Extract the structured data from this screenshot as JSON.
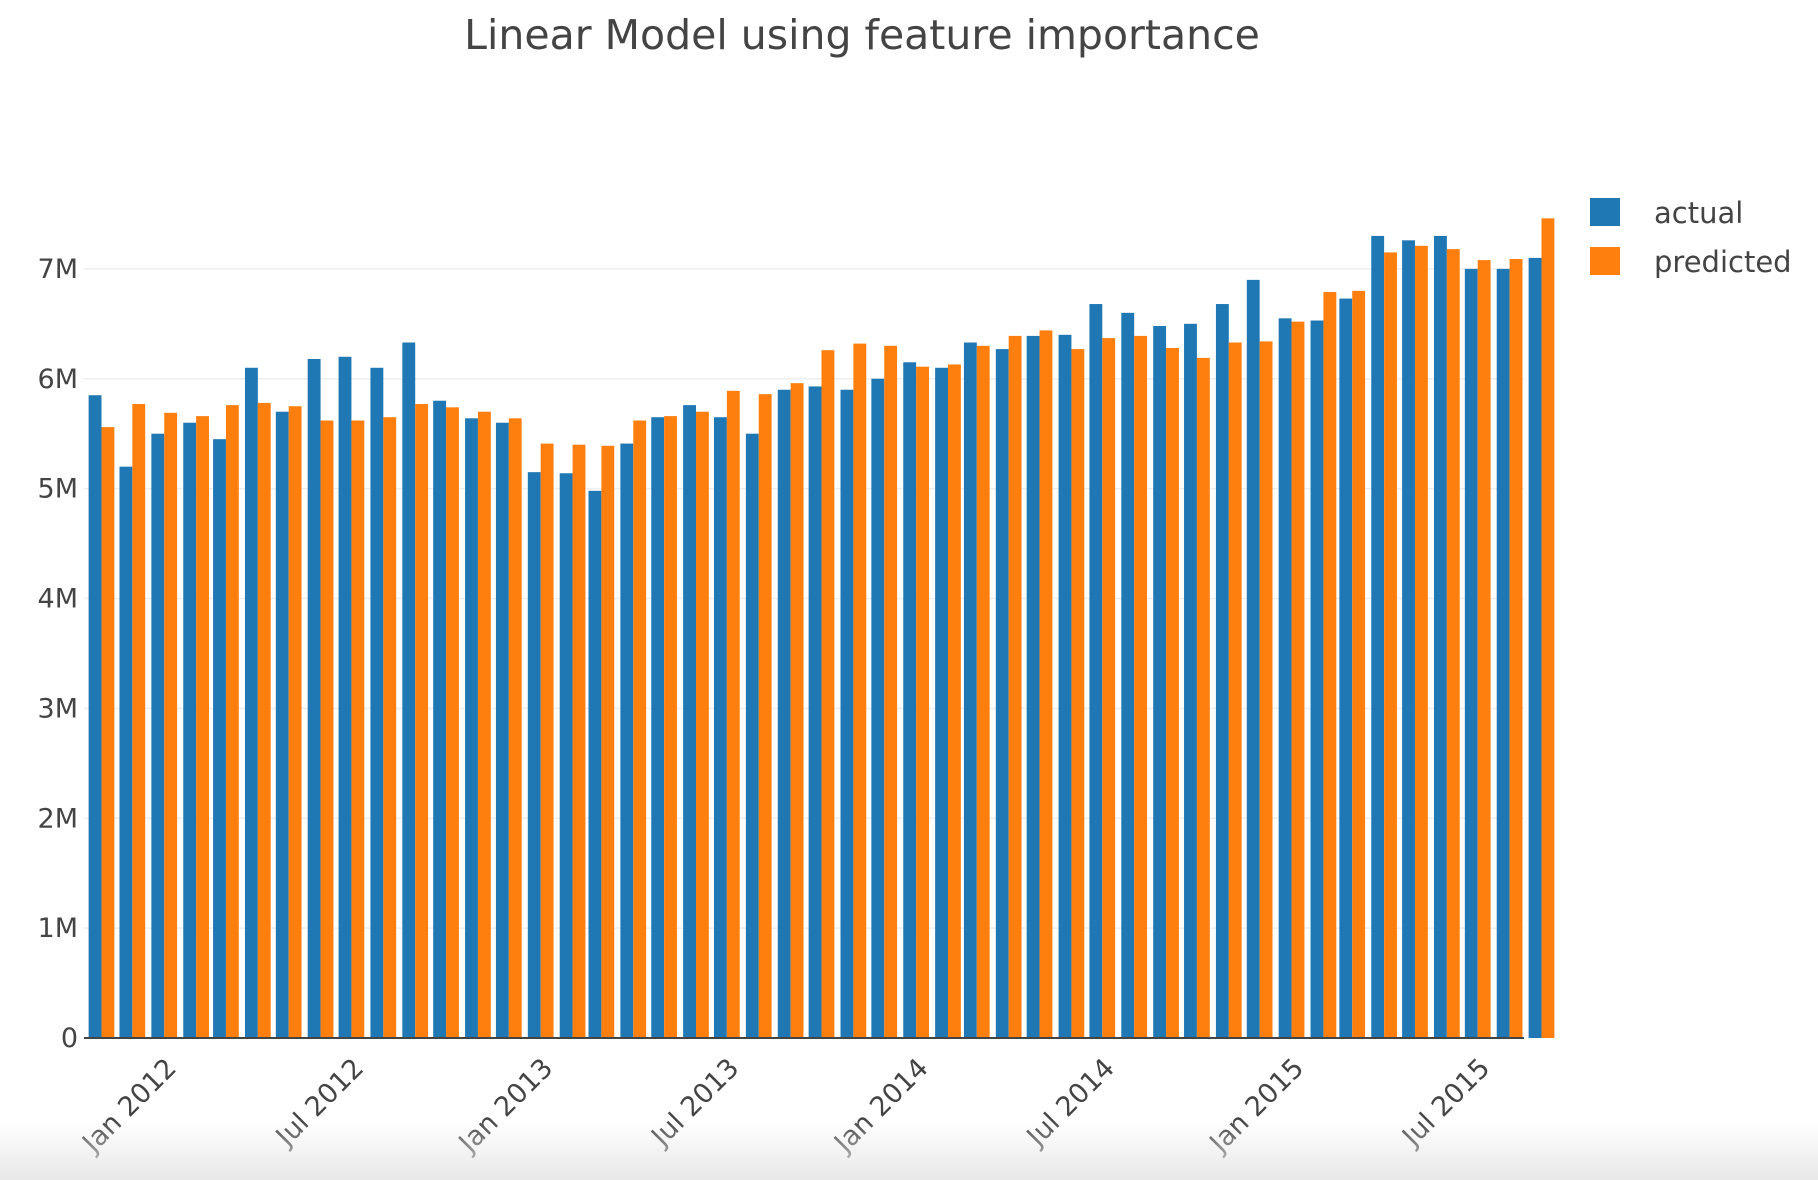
{
  "chart_data": {
    "type": "bar",
    "title": "Linear Model using feature importance",
    "xlabel": "",
    "ylabel": "",
    "ylim": [
      0,
      7900000
    ],
    "xlim": [
      "2011-10-15",
      "2015-08-15"
    ],
    "x_axis_type": "date",
    "y_ticks": [
      {
        "value": 0,
        "label": "0"
      },
      {
        "value": 1000000,
        "label": "1M"
      },
      {
        "value": 2000000,
        "label": "2M"
      },
      {
        "value": 3000000,
        "label": "3M"
      },
      {
        "value": 4000000,
        "label": "4M"
      },
      {
        "value": 5000000,
        "label": "5M"
      },
      {
        "value": 6000000,
        "label": "6M"
      },
      {
        "value": 7000000,
        "label": "7M"
      }
    ],
    "x_ticks": [
      {
        "value": "2012-01-01",
        "label": "Jan 2012"
      },
      {
        "value": "2012-07-01",
        "label": "Jul 2012"
      },
      {
        "value": "2013-01-01",
        "label": "Jan 2013"
      },
      {
        "value": "2013-07-01",
        "label": "Jul 2013"
      },
      {
        "value": "2014-01-01",
        "label": "Jan 2014"
      },
      {
        "value": "2014-07-01",
        "label": "Jul 2014"
      },
      {
        "value": "2015-01-01",
        "label": "Jan 2015"
      },
      {
        "value": "2015-07-01",
        "label": "Jul 2015"
      }
    ],
    "grid": true,
    "legend_position": "top-right",
    "x": [
      "2011-11-01",
      "2011-12-01",
      "2012-01-01",
      "2012-02-01",
      "2012-03-01",
      "2012-04-01",
      "2012-05-01",
      "2012-06-01",
      "2012-07-01",
      "2012-08-01",
      "2012-09-01",
      "2012-10-01",
      "2012-11-01",
      "2012-12-01",
      "2013-01-01",
      "2013-02-01",
      "2013-03-01",
      "2013-04-01",
      "2013-05-01",
      "2013-06-01",
      "2013-07-01",
      "2013-08-01",
      "2013-09-01",
      "2013-10-01",
      "2013-11-01",
      "2013-12-01",
      "2014-01-01",
      "2014-02-01",
      "2014-03-01",
      "2014-04-01",
      "2014-05-01",
      "2014-06-01",
      "2014-07-01",
      "2014-08-01",
      "2014-09-01",
      "2014-10-01",
      "2014-11-01",
      "2014-12-01",
      "2015-01-01",
      "2015-02-01",
      "2015-03-01",
      "2015-04-01",
      "2015-05-01",
      "2015-06-01",
      "2015-07-01",
      "2015-08-01",
      "2015-09-01"
    ],
    "series": [
      {
        "name": "actual",
        "color": "#1f77b4",
        "values": [
          5850000,
          5200000,
          5500000,
          5600000,
          5450000,
          6100000,
          5700000,
          6180000,
          6200000,
          6100000,
          6330000,
          5800000,
          5640000,
          5600000,
          5150000,
          5140000,
          4980000,
          5410000,
          5650000,
          5760000,
          5650000,
          5500000,
          5900000,
          5930000,
          5900000,
          6000000,
          6150000,
          6100000,
          6330000,
          6270000,
          6390000,
          6400000,
          6680000,
          6600000,
          6480000,
          6500000,
          6680000,
          6900000,
          6550000,
          6530000,
          6730000,
          7300000,
          7260000,
          7300000,
          7000000,
          7000000,
          7100000
        ]
      },
      {
        "name": "predicted",
        "color": "#ff7f0e",
        "values": [
          5560000,
          5770000,
          5690000,
          5660000,
          5760000,
          5780000,
          5750000,
          5620000,
          5620000,
          5650000,
          5770000,
          5740000,
          5700000,
          5640000,
          5410000,
          5400000,
          5390000,
          5620000,
          5660000,
          5700000,
          5890000,
          5860000,
          5960000,
          6260000,
          6320000,
          6300000,
          6110000,
          6130000,
          6300000,
          6390000,
          6440000,
          6270000,
          6370000,
          6390000,
          6280000,
          6190000,
          6330000,
          6340000,
          6520000,
          6790000,
          6800000,
          7150000,
          7210000,
          7180000,
          7080000,
          7090000,
          7460000
        ]
      }
    ]
  }
}
